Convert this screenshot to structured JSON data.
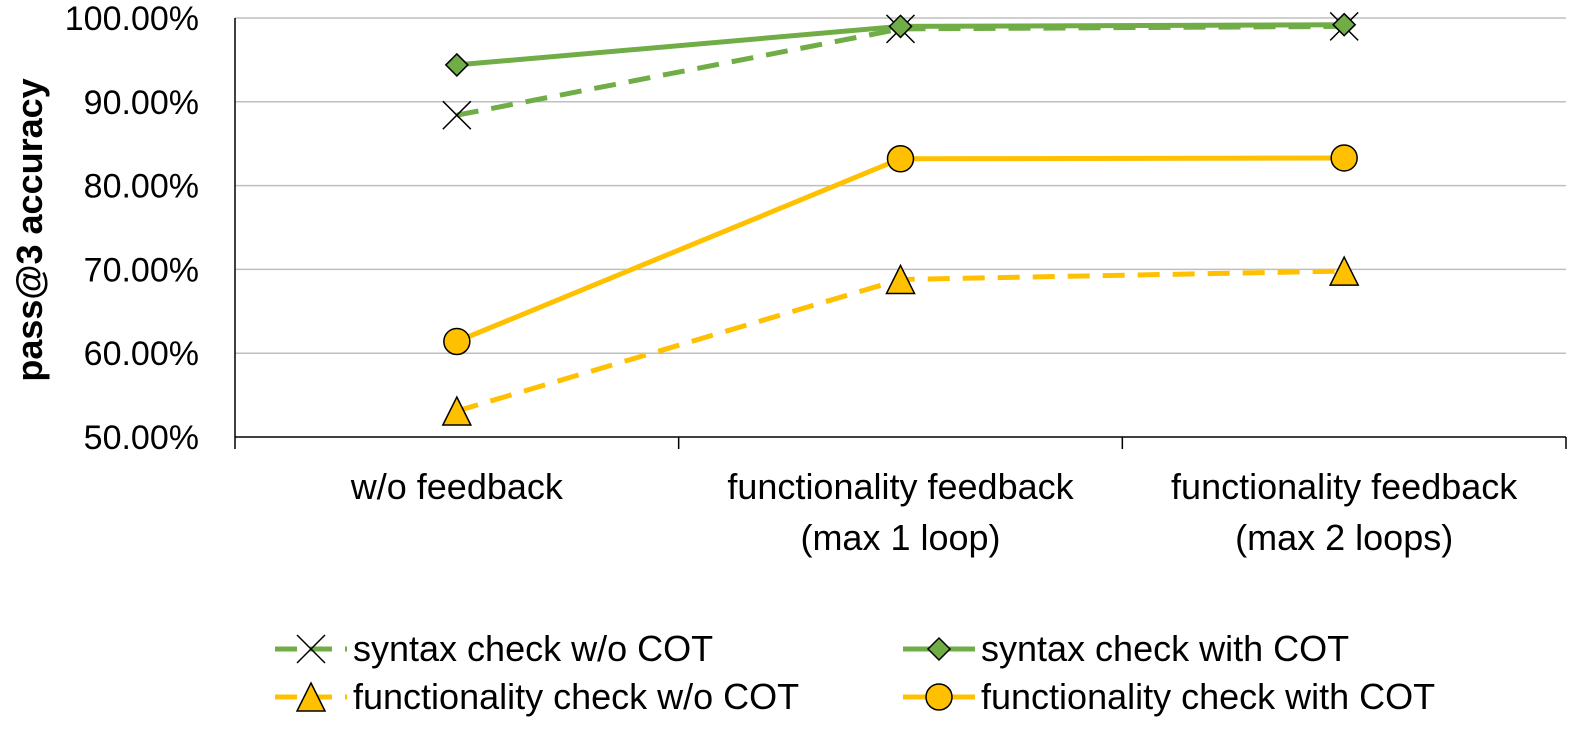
{
  "chart_data": {
    "type": "line",
    "title": "",
    "xlabel": "",
    "ylabel": "pass@3 accuracy",
    "ylim": [
      50,
      100
    ],
    "yticks": [
      50,
      60,
      70,
      80,
      90,
      100
    ],
    "ytick_labels": [
      "50.00%",
      "60.00%",
      "70.00%",
      "80.00%",
      "90.00%",
      "100.00%"
    ],
    "grid": true,
    "legend_position": "bottom",
    "categories": [
      {
        "line1": "w/o feedback",
        "line2": ""
      },
      {
        "line1": "functionality feedback",
        "line2": "(max 1 loop)"
      },
      {
        "line1": "functionality feedback",
        "line2": "(max 2 loops)"
      }
    ],
    "series": [
      {
        "name": "syntax check w/o COT",
        "values": [
          88.4,
          98.7,
          99.0
        ],
        "color": "#70ad47",
        "dash": "dashed",
        "marker": "x"
      },
      {
        "name": "syntax check with COT",
        "values": [
          94.4,
          99.0,
          99.2
        ],
        "color": "#70ad47",
        "dash": "solid",
        "marker": "diamond"
      },
      {
        "name": "functionality check w/o COT",
        "values": [
          53.1,
          68.8,
          69.8
        ],
        "color": "#ffc000",
        "dash": "dashed",
        "marker": "triangle"
      },
      {
        "name": "functionality check with COT",
        "values": [
          61.4,
          83.2,
          83.3
        ],
        "color": "#ffc000",
        "dash": "solid",
        "marker": "circle"
      }
    ]
  }
}
